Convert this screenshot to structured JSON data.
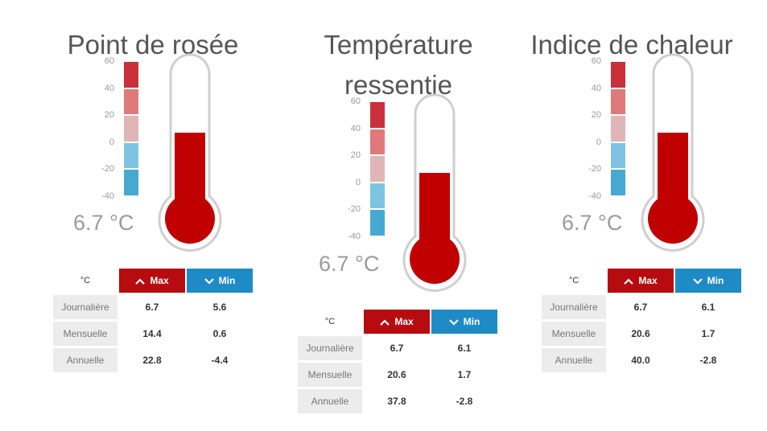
{
  "colors": {
    "scale": [
      "#c9303a",
      "#e07a7a",
      "#dfb5b8",
      "#7ec4e2",
      "#45a9d1"
    ],
    "fill": "#c00000",
    "max_header": "#b60c10",
    "min_header": "#1f8bc6"
  },
  "scale_ticks": [
    "60",
    "40",
    "20",
    "0",
    "-20",
    "-40"
  ],
  "table_labels": {
    "unit": "°C",
    "max": "Max",
    "min": "Min",
    "rows": [
      "Journalière",
      "Mensuelle",
      "Annuelle"
    ]
  },
  "panels": [
    {
      "title": [
        "Point de rosée"
      ],
      "reading": "6.7 °C",
      "level_c": 6.7,
      "stats": [
        {
          "max": "6.7",
          "min": "5.6"
        },
        {
          "max": "14.4",
          "min": "0.6"
        },
        {
          "max": "22.8",
          "min": "-4.4"
        }
      ]
    },
    {
      "title": [
        "Température",
        "ressentie"
      ],
      "reading": "6.7 °C",
      "level_c": 6.7,
      "stats": [
        {
          "max": "6.7",
          "min": "6.1"
        },
        {
          "max": "20.6",
          "min": "1.7"
        },
        {
          "max": "37.8",
          "min": "-2.8"
        }
      ]
    },
    {
      "title": [
        "Indice de chaleur"
      ],
      "reading": "6.7 °C",
      "level_c": 6.7,
      "stats": [
        {
          "max": "6.7",
          "min": "6.1"
        },
        {
          "max": "20.6",
          "min": "1.7"
        },
        {
          "max": "40.0",
          "min": "-2.8"
        }
      ]
    }
  ]
}
